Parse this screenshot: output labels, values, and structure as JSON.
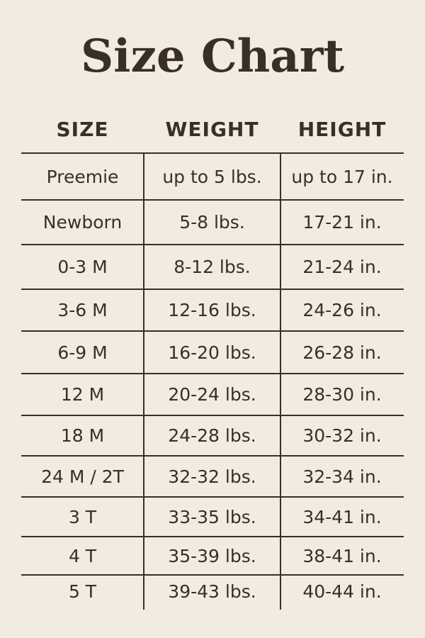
{
  "title": "Size Chart",
  "headers": [
    "SIZE",
    "WEIGHT",
    "HEIGHT"
  ],
  "rows": [
    [
      "Preemie",
      "up to 5 lbs.",
      "up to 17 in."
    ],
    [
      "Newborn",
      "5-8 lbs.",
      "17-21 in."
    ],
    [
      "0-3 M",
      "8-12 lbs.",
      "21-24 in."
    ],
    [
      "3-6 M",
      "12-16 lbs.",
      "24-26 in."
    ],
    [
      "6-9 M",
      "16-20 lbs.",
      "26-28 in."
    ],
    [
      "12 M",
      "20-24 lbs.",
      "28-30 in."
    ],
    [
      "18 M",
      "24-28 lbs.",
      "30-32 in."
    ],
    [
      "24 M / 2T",
      "32-32 lbs.",
      "32-34 in."
    ],
    [
      "3 T",
      "33-35 lbs.",
      "34-41 in."
    ],
    [
      "4 T",
      "35-39 lbs.",
      "38-41 in."
    ],
    [
      "5 T",
      "39-43 lbs.",
      "40-44 in."
    ]
  ],
  "colors": {
    "background": "#f1ebe1",
    "text": "#3a2f27"
  }
}
